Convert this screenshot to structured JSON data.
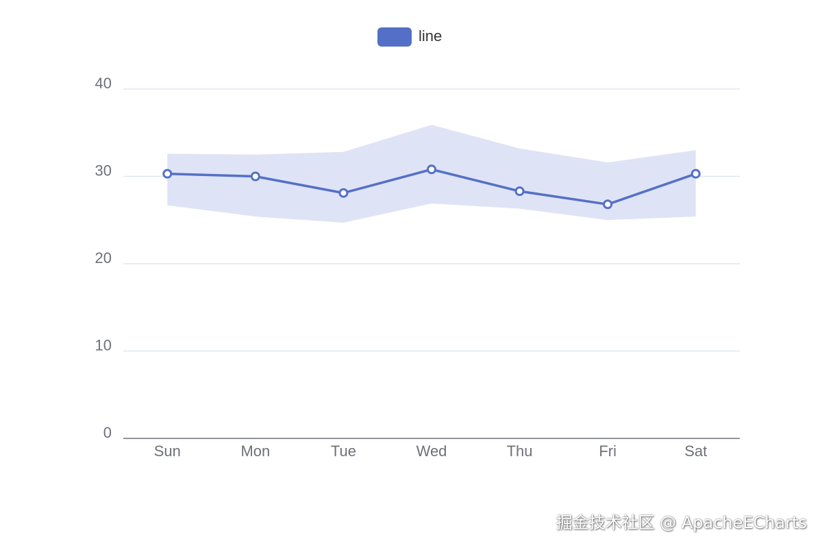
{
  "colors": {
    "line": "#5470c6",
    "band": "#dde2f5",
    "grid": "#e0e6f1",
    "axis": "#6e7079",
    "point_fill": "#ffffff"
  },
  "chart_data": {
    "type": "line",
    "categories": [
      "Sun",
      "Mon",
      "Tue",
      "Wed",
      "Thu",
      "Fri",
      "Sat"
    ],
    "legend": [
      "line"
    ],
    "legend_position": "top-center",
    "series": [
      {
        "name": "line",
        "values": [
          30.3,
          30.0,
          28.1,
          30.8,
          28.3,
          26.8,
          30.3
        ]
      }
    ],
    "band": {
      "upper": [
        32.6,
        32.5,
        32.8,
        35.9,
        33.2,
        31.6,
        33.0
      ],
      "lower": [
        26.7,
        25.4,
        24.7,
        26.9,
        26.3,
        25.0,
        25.4
      ]
    },
    "y_ticks": [
      0,
      10,
      20,
      30,
      40
    ],
    "ylim": [
      0,
      40
    ],
    "grid": true
  },
  "watermark": "掘金技术社区 @ ApacheECharts"
}
